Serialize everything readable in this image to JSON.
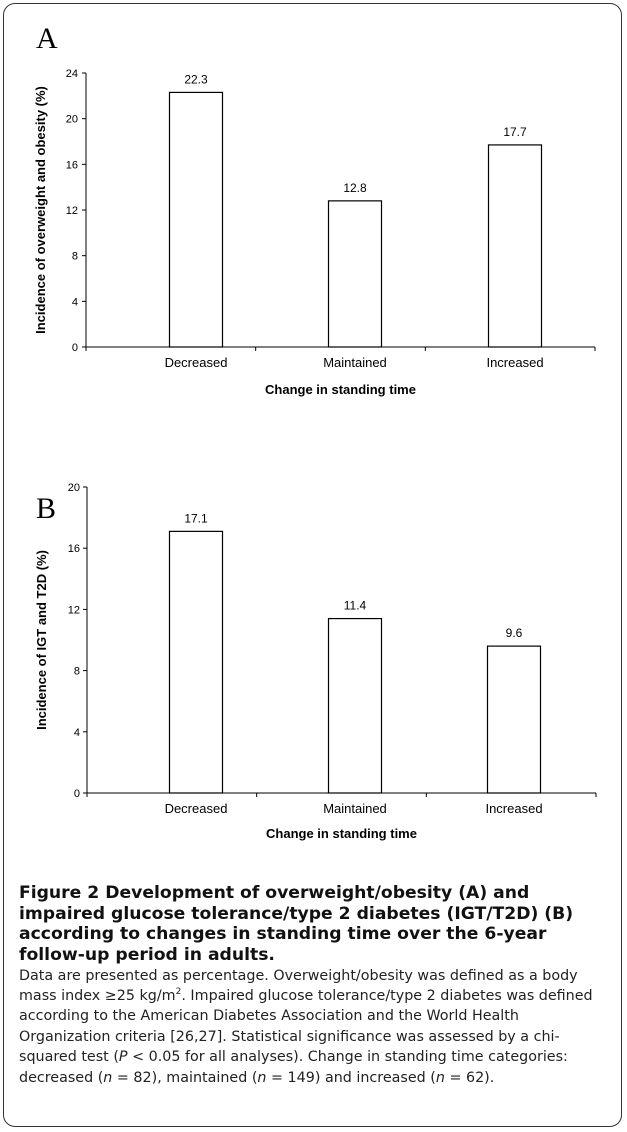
{
  "chart_data": [
    {
      "type": "bar",
      "panel": "A",
      "categories": [
        "Decreased",
        "Maintained",
        "Increased"
      ],
      "values": [
        22.3,
        12.8,
        17.7
      ],
      "data_labels": [
        "22.3",
        "12.8",
        "17.7"
      ],
      "xlabel": "Change in standing time",
      "ylabel": "Incidence of overweight and obesity (%)",
      "ylim": [
        0,
        24
      ],
      "yticks": [
        0,
        4,
        8,
        12,
        16,
        20,
        24
      ],
      "grid": false,
      "bar_fill": "#ffffff",
      "bar_stroke": "#000000"
    },
    {
      "type": "bar",
      "panel": "B",
      "categories": [
        "Decreased",
        "Maintained",
        "Increased"
      ],
      "values": [
        17.1,
        11.4,
        9.6
      ],
      "data_labels": [
        "17.1",
        "11.4",
        "9.6"
      ],
      "xlabel": "Change in standing time",
      "ylabel": "Incidence of IGT and T2D (%)",
      "ylim": [
        0,
        20
      ],
      "yticks": [
        0,
        4,
        8,
        12,
        16,
        20
      ],
      "grid": false,
      "bar_fill": "#ffffff",
      "bar_stroke": "#000000"
    }
  ],
  "caption": {
    "title": "Figure 2 Development of overweight/obesity (A) and impaired glucose tolerance/type 2 diabetes (IGT/T2D) (B) according to changes in standing time over the 6-year follow-up period in adults.",
    "seg1": " Data are presented as percentage. Overweight/obesity was defined as a body mass index ≥25 kg/m",
    "sup": "2",
    "seg2": ". Impaired glucose tolerance/type 2 diabetes was defined according to the American Diabetes Association and the World Health Organization criteria [26,27]. Statistical significance was assessed by a chi-squared test (",
    "p_var": "P",
    "seg3": " < 0.05 for all analyses). Change in standing time categories: decreased (",
    "n_var1": "n",
    "seg4": " = 82), maintained (",
    "n_var2": "n",
    "seg5": " = 149) and increased (",
    "n_var3": "n",
    "seg6": " = 62)."
  }
}
